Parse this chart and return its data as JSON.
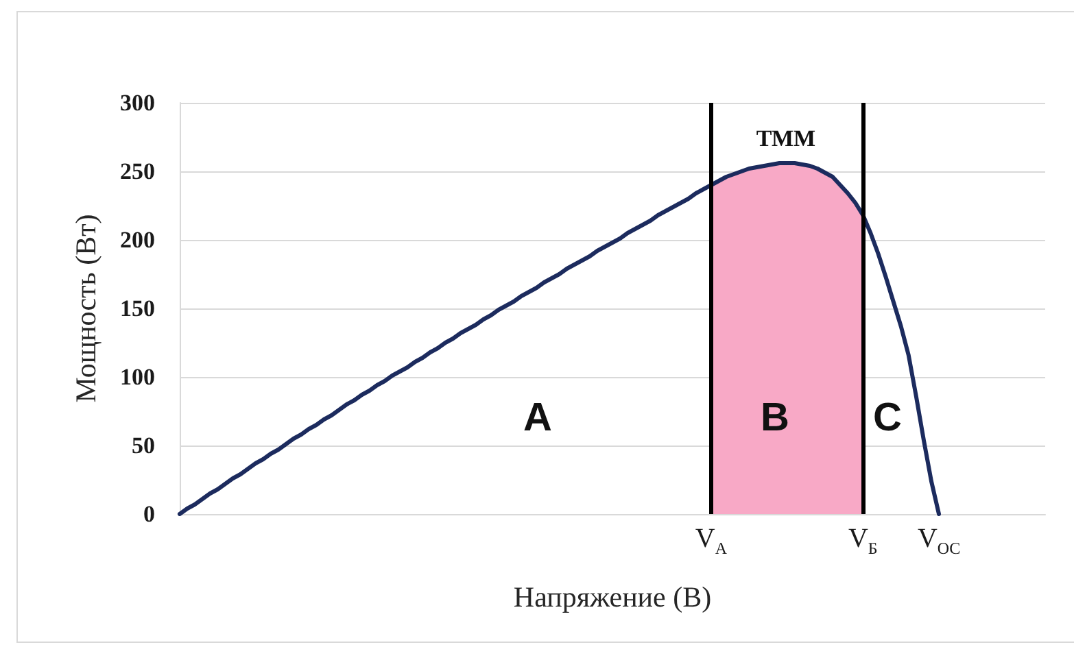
{
  "chart_data": {
    "type": "line",
    "xlabel": "Напряжение (В)",
    "ylabel": "Мощность (Вт)",
    "categories": [
      null,
      null,
      null,
      null,
      null,
      null,
      null,
      null,
      null,
      null,
      null,
      null,
      null,
      null,
      null,
      null,
      null,
      null,
      null,
      null,
      null,
      null,
      null,
      null,
      null,
      null,
      null,
      null,
      null,
      null,
      null,
      null,
      null,
      null,
      null,
      null,
      null,
      null,
      null,
      null,
      null,
      null,
      null,
      null,
      null,
      null,
      null,
      null,
      null,
      null,
      null,
      null,
      null,
      null,
      null,
      null,
      null,
      null,
      null,
      null,
      null,
      null,
      null,
      null,
      null,
      null,
      null,
      null,
      null,
      null,
      "V$_{А}$",
      null,
      null,
      null,
      null,
      null,
      null,
      null,
      null,
      null,
      null,
      null,
      null,
      null,
      null,
      null,
      null,
      null,
      null,
      null,
      "V$_{Б}$",
      null,
      null,
      null,
      null,
      null,
      null,
      null,
      null,
      null,
      "V$_{OC}$",
      null,
      null,
      null,
      null,
      null,
      null,
      null,
      null,
      null,
      null,
      null,
      null,
      null,
      null
    ],
    "series": [
      {
        "type": "area",
        "color": "#f8a9c6",
        "values": [
          null,
          null,
          null,
          null,
          null,
          null,
          null,
          null,
          null,
          null,
          null,
          null,
          null,
          null,
          null,
          null,
          null,
          null,
          null,
          null,
          null,
          null,
          null,
          null,
          null,
          null,
          null,
          null,
          null,
          null,
          null,
          null,
          null,
          null,
          null,
          null,
          null,
          null,
          null,
          null,
          null,
          null,
          null,
          null,
          null,
          null,
          null,
          null,
          null,
          null,
          null,
          null,
          null,
          null,
          null,
          null,
          null,
          null,
          null,
          null,
          null,
          null,
          null,
          null,
          null,
          null,
          null,
          null,
          null,
          null,
          240,
          243,
          246,
          248,
          250,
          252,
          253,
          254,
          255,
          256,
          256,
          256,
          255,
          254,
          252,
          249,
          246,
          240,
          234,
          227,
          218,
          null,
          null,
          null,
          null,
          null,
          null,
          null,
          null,
          null,
          null,
          null,
          null,
          null,
          null,
          null,
          null,
          null,
          null,
          null,
          null,
          null,
          null,
          null,
          null
        ]
      },
      {
        "color": "#1c2b5e",
        "values": [
          0,
          4,
          7,
          11,
          15,
          18,
          22,
          26,
          29,
          33,
          37,
          40,
          44,
          47,
          51,
          55,
          58,
          62,
          65,
          69,
          72,
          76,
          80,
          83,
          87,
          90,
          94,
          97,
          101,
          104,
          107,
          111,
          114,
          118,
          121,
          125,
          128,
          132,
          135,
          138,
          142,
          145,
          149,
          152,
          155,
          159,
          162,
          165,
          169,
          172,
          175,
          179,
          182,
          185,
          188,
          192,
          195,
          198,
          201,
          205,
          208,
          211,
          214,
          218,
          221,
          224,
          227,
          230,
          234,
          237,
          240,
          243,
          246,
          248,
          250,
          252,
          253,
          254,
          255,
          256,
          256,
          256,
          255,
          254,
          252,
          249,
          246,
          240,
          234,
          227,
          218,
          205,
          190,
          173,
          155,
          137,
          116,
          86,
          54,
          24,
          0,
          null,
          null,
          null,
          null,
          null,
          null,
          null,
          null,
          null,
          null,
          null,
          null,
          null,
          null
        ]
      }
    ],
    "ylim": [
      0,
      300
    ],
    "yticks": [
      0,
      50,
      100,
      150,
      200,
      250,
      300
    ],
    "grid": "y",
    "marker": "none",
    "line_style": "solid",
    "ref_lines": [
      {
        "axis": "x",
        "value": "V$_{А}$",
        "color": "#000000"
      },
      {
        "axis": "x",
        "value": "V$_{Б}$",
        "color": "#000000"
      }
    ],
    "annotations": [
      "ТММ",
      "A",
      "B",
      "C"
    ]
  }
}
